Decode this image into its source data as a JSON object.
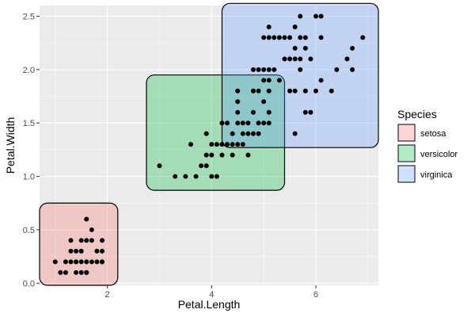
{
  "chart_data": {
    "type": "scatter",
    "xlabel": "Petal.Length",
    "ylabel": "Petal.Width",
    "xlim": [
      0.7,
      7.2
    ],
    "ylim": [
      -0.02,
      2.6
    ],
    "x_ticks": [
      2,
      4,
      6
    ],
    "y_ticks": [
      0.0,
      0.5,
      1.0,
      1.5,
      2.0,
      2.5
    ],
    "y_tick_labels": [
      "0.0",
      "0.5",
      "1.0",
      "1.5",
      "2.0",
      "2.5"
    ],
    "x_tick_labels": [
      "2",
      "4",
      "6"
    ],
    "grid": true,
    "legend": {
      "title": "Species",
      "position": "right",
      "entries": [
        {
          "label": "setosa",
          "color": "#F8766D"
        },
        {
          "label": "versicolor",
          "color": "#00BA38"
        },
        {
          "label": "virginica",
          "color": "#619CFF"
        }
      ]
    },
    "hulls": [
      {
        "species": "setosa",
        "xmin": 0.7,
        "xmax": 2.2,
        "ymin": -0.02,
        "ymax": 0.75
      },
      {
        "species": "versicolor",
        "xmin": 2.75,
        "xmax": 5.4,
        "ymin": 0.87,
        "ymax": 1.95
      },
      {
        "species": "virginica",
        "xmin": 4.2,
        "xmax": 7.2,
        "ymin": 1.27,
        "ymax": 2.62
      }
    ],
    "points": [
      [
        1.0,
        0.2
      ],
      [
        1.1,
        0.1
      ],
      [
        1.2,
        0.2
      ],
      [
        1.3,
        0.2
      ],
      [
        1.3,
        0.3
      ],
      [
        1.4,
        0.2
      ],
      [
        1.4,
        0.1
      ],
      [
        1.5,
        0.2
      ],
      [
        1.5,
        0.3
      ],
      [
        1.5,
        0.4
      ],
      [
        1.6,
        0.2
      ],
      [
        1.6,
        0.4
      ],
      [
        1.7,
        0.2
      ],
      [
        1.7,
        0.4
      ],
      [
        1.8,
        0.2
      ],
      [
        1.8,
        0.3
      ],
      [
        1.9,
        0.2
      ],
      [
        1.9,
        0.4
      ],
      [
        1.6,
        0.6
      ],
      [
        1.7,
        0.5
      ],
      [
        1.4,
        0.3
      ],
      [
        1.5,
        0.1
      ],
      [
        1.3,
        0.4
      ],
      [
        1.6,
        0.1
      ],
      [
        1.2,
        0.1
      ],
      [
        1.9,
        0.2
      ],
      [
        1.4,
        0.2
      ],
      [
        1.5,
        0.3
      ],
      [
        1.9,
        0.3
      ],
      [
        1.6,
        0.1
      ],
      [
        3.0,
        1.1
      ],
      [
        3.3,
        1.0
      ],
      [
        3.5,
        1.0
      ],
      [
        3.6,
        1.3
      ],
      [
        3.7,
        1.0
      ],
      [
        3.8,
        1.1
      ],
      [
        3.9,
        1.1
      ],
      [
        3.9,
        1.2
      ],
      [
        3.9,
        1.4
      ],
      [
        4.0,
        1.0
      ],
      [
        4.0,
        1.2
      ],
      [
        4.0,
        1.3
      ],
      [
        4.1,
        1.0
      ],
      [
        4.1,
        1.3
      ],
      [
        4.2,
        1.2
      ],
      [
        4.2,
        1.3
      ],
      [
        4.2,
        1.5
      ],
      [
        4.3,
        1.3
      ],
      [
        4.4,
        1.2
      ],
      [
        4.4,
        1.3
      ],
      [
        4.4,
        1.4
      ],
      [
        4.5,
        1.3
      ],
      [
        4.5,
        1.5
      ],
      [
        4.5,
        1.6
      ],
      [
        4.6,
        1.3
      ],
      [
        4.6,
        1.4
      ],
      [
        4.6,
        1.5
      ],
      [
        4.7,
        1.2
      ],
      [
        4.7,
        1.4
      ],
      [
        4.7,
        1.5
      ],
      [
        4.8,
        1.4
      ],
      [
        4.8,
        1.8
      ],
      [
        4.9,
        1.5
      ],
      [
        5.0,
        1.7
      ],
      [
        5.1,
        1.6
      ],
      [
        4.5,
        1.7
      ],
      [
        4.9,
        1.4
      ],
      [
        4.2,
        1.3
      ],
      [
        4.8,
        1.6
      ],
      [
        4.3,
        1.5
      ],
      [
        4.9,
        1.8
      ],
      [
        5.0,
        1.5
      ],
      [
        4.9,
        2.0
      ],
      [
        4.8,
        1.8
      ],
      [
        5.1,
        1.5
      ],
      [
        5.1,
        2.0
      ],
      [
        5.1,
        1.9
      ],
      [
        5.1,
        2.3
      ],
      [
        5.1,
        2.4
      ],
      [
        5.2,
        2.0
      ],
      [
        5.2,
        2.3
      ],
      [
        5.3,
        2.3
      ],
      [
        5.3,
        1.9
      ],
      [
        5.4,
        2.1
      ],
      [
        5.4,
        2.3
      ],
      [
        5.5,
        1.8
      ],
      [
        5.5,
        2.1
      ],
      [
        5.5,
        2.3
      ],
      [
        5.6,
        1.8
      ],
      [
        5.6,
        2.1
      ],
      [
        5.6,
        2.2
      ],
      [
        5.6,
        2.4
      ],
      [
        5.6,
        1.4
      ],
      [
        5.7,
        2.1
      ],
      [
        5.7,
        2.3
      ],
      [
        5.7,
        2.5
      ],
      [
        5.8,
        1.6
      ],
      [
        5.8,
        1.8
      ],
      [
        5.8,
        2.2
      ],
      [
        6.0,
        1.8
      ],
      [
        6.0,
        2.5
      ],
      [
        6.1,
        1.9
      ],
      [
        6.1,
        2.3
      ],
      [
        6.1,
        2.5
      ],
      [
        6.3,
        1.8
      ],
      [
        6.4,
        2.0
      ],
      [
        6.6,
        2.1
      ],
      [
        6.7,
        2.0
      ],
      [
        6.7,
        2.2
      ],
      [
        6.9,
        2.3
      ],
      [
        5.9,
        2.1
      ],
      [
        5.9,
        1.6
      ],
      [
        5.7,
        2.0
      ],
      [
        5.0,
        2.0
      ],
      [
        4.5,
        1.8
      ],
      [
        4.8,
        2.0
      ],
      [
        5.0,
        1.9
      ],
      [
        5.8,
        2.3
      ],
      [
        5.0,
        2.3
      ],
      [
        5.1,
        1.8
      ]
    ]
  }
}
